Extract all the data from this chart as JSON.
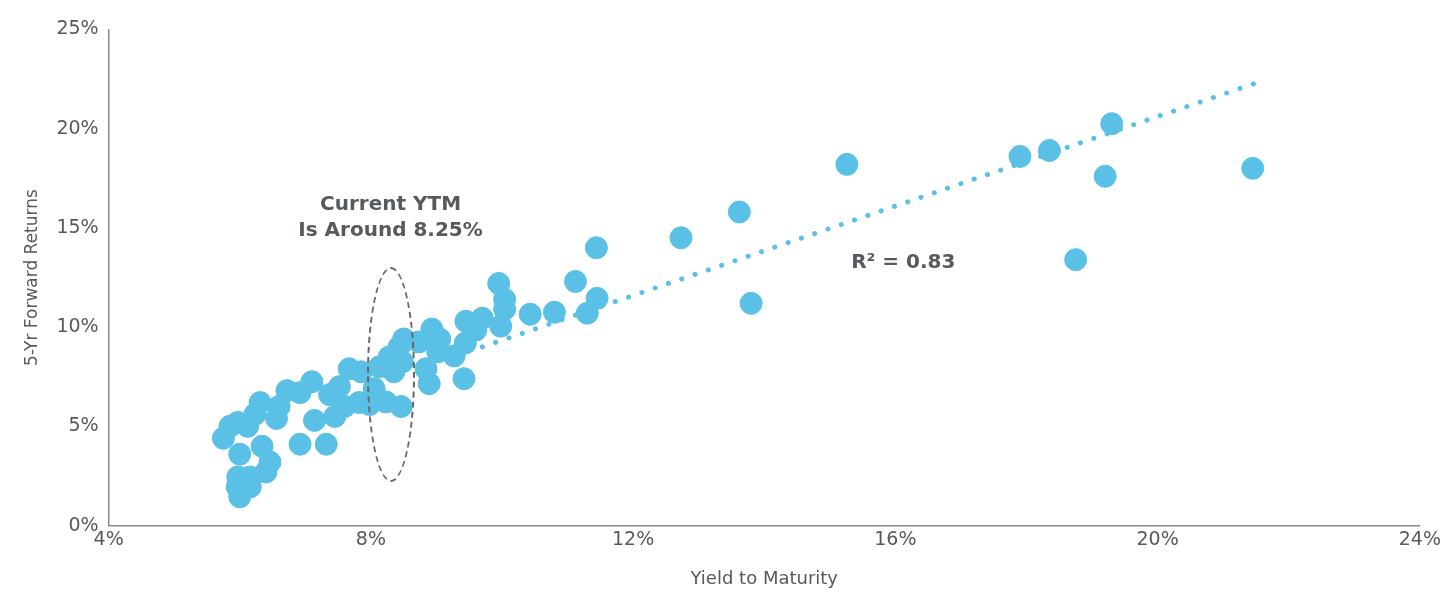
{
  "chart_data": {
    "type": "scatter",
    "xlabel": "Yield to Maturity",
    "ylabel": "5-Yr Forward Returns",
    "xlim": [
      4,
      24
    ],
    "xticks": [
      {
        "value": 4,
        "label": "4%"
      },
      {
        "value": 8,
        "label": "8%"
      },
      {
        "value": 12,
        "label": "12%"
      },
      {
        "value": 16,
        "label": "16%"
      },
      {
        "value": 20,
        "label": "20%"
      },
      {
        "value": 24,
        "label": "24%"
      }
    ],
    "ylim": [
      0,
      25
    ],
    "yticks": [
      {
        "value": 0,
        "label": "0%"
      },
      {
        "value": 5,
        "label": "5%"
      },
      {
        "value": 10,
        "label": "10%"
      },
      {
        "value": 15,
        "label": "15%"
      },
      {
        "value": 20,
        "label": "20%"
      },
      {
        "value": 25,
        "label": "25%"
      }
    ],
    "grid": false,
    "legend": false,
    "series": [
      {
        "color": "#5bc0e6",
        "marker": "circle",
        "x": [
          19.3,
          21.45,
          19.2,
          18.75,
          18.35,
          17.9,
          15.26,
          13.8,
          13.62,
          12.73,
          11.44,
          11.45,
          11.3,
          11.12,
          10.8,
          10.43,
          10.04,
          9.95,
          10.04,
          9.98,
          9.7,
          9.45,
          9.6,
          9.42,
          9.44,
          9.27,
          8.93,
          9.05,
          8.89,
          8.84,
          9.02,
          8.43,
          8.28,
          8.13,
          8.35,
          8.46,
          8.23,
          7.98,
          7.85,
          7.67,
          7.52,
          7.6,
          7.37,
          7.45,
          7.32,
          7.14,
          7.1,
          6.92,
          6.92,
          6.72,
          6.6,
          6.56,
          6.31,
          6.23,
          6.12,
          5.97,
          5.85,
          5.75,
          6.34,
          6.46,
          6.4,
          6.16,
          6.0,
          5.97,
          5.96,
          6.16,
          6.0,
          8.73,
          8.5,
          7.82,
          8.05,
          8.48
        ],
        "values": [
          20.25,
          18.0,
          17.6,
          13.4,
          18.9,
          18.6,
          18.2,
          11.2,
          15.8,
          14.5,
          14.0,
          11.45,
          10.7,
          12.3,
          10.75,
          10.65,
          11.4,
          12.2,
          10.9,
          10.05,
          10.45,
          10.3,
          9.85,
          7.4,
          9.2,
          8.55,
          9.9,
          9.4,
          7.15,
          7.9,
          8.75,
          9.0,
          8.5,
          8.0,
          7.75,
          6.0,
          6.23,
          6.1,
          7.75,
          7.9,
          7.0,
          6.0,
          6.6,
          5.5,
          4.1,
          5.3,
          7.25,
          6.7,
          4.1,
          6.8,
          6.0,
          5.4,
          6.2,
          5.6,
          5.0,
          5.2,
          5.0,
          4.4,
          4.0,
          3.2,
          2.7,
          2.45,
          3.6,
          2.45,
          1.95,
          1.95,
          1.45,
          9.25,
          9.4,
          6.2,
          6.9,
          8.25
        ]
      },
      {
        "type": "line",
        "color": "#5bc0e6",
        "line_style": "dotted",
        "marker": "none",
        "x": [
          9.7,
          21.5
        ],
        "values": [
          9.0,
          22.3
        ]
      }
    ],
    "annotations": [
      "Current YTM\nIs Around 8.25%",
      "R² = 0.83"
    ]
  }
}
